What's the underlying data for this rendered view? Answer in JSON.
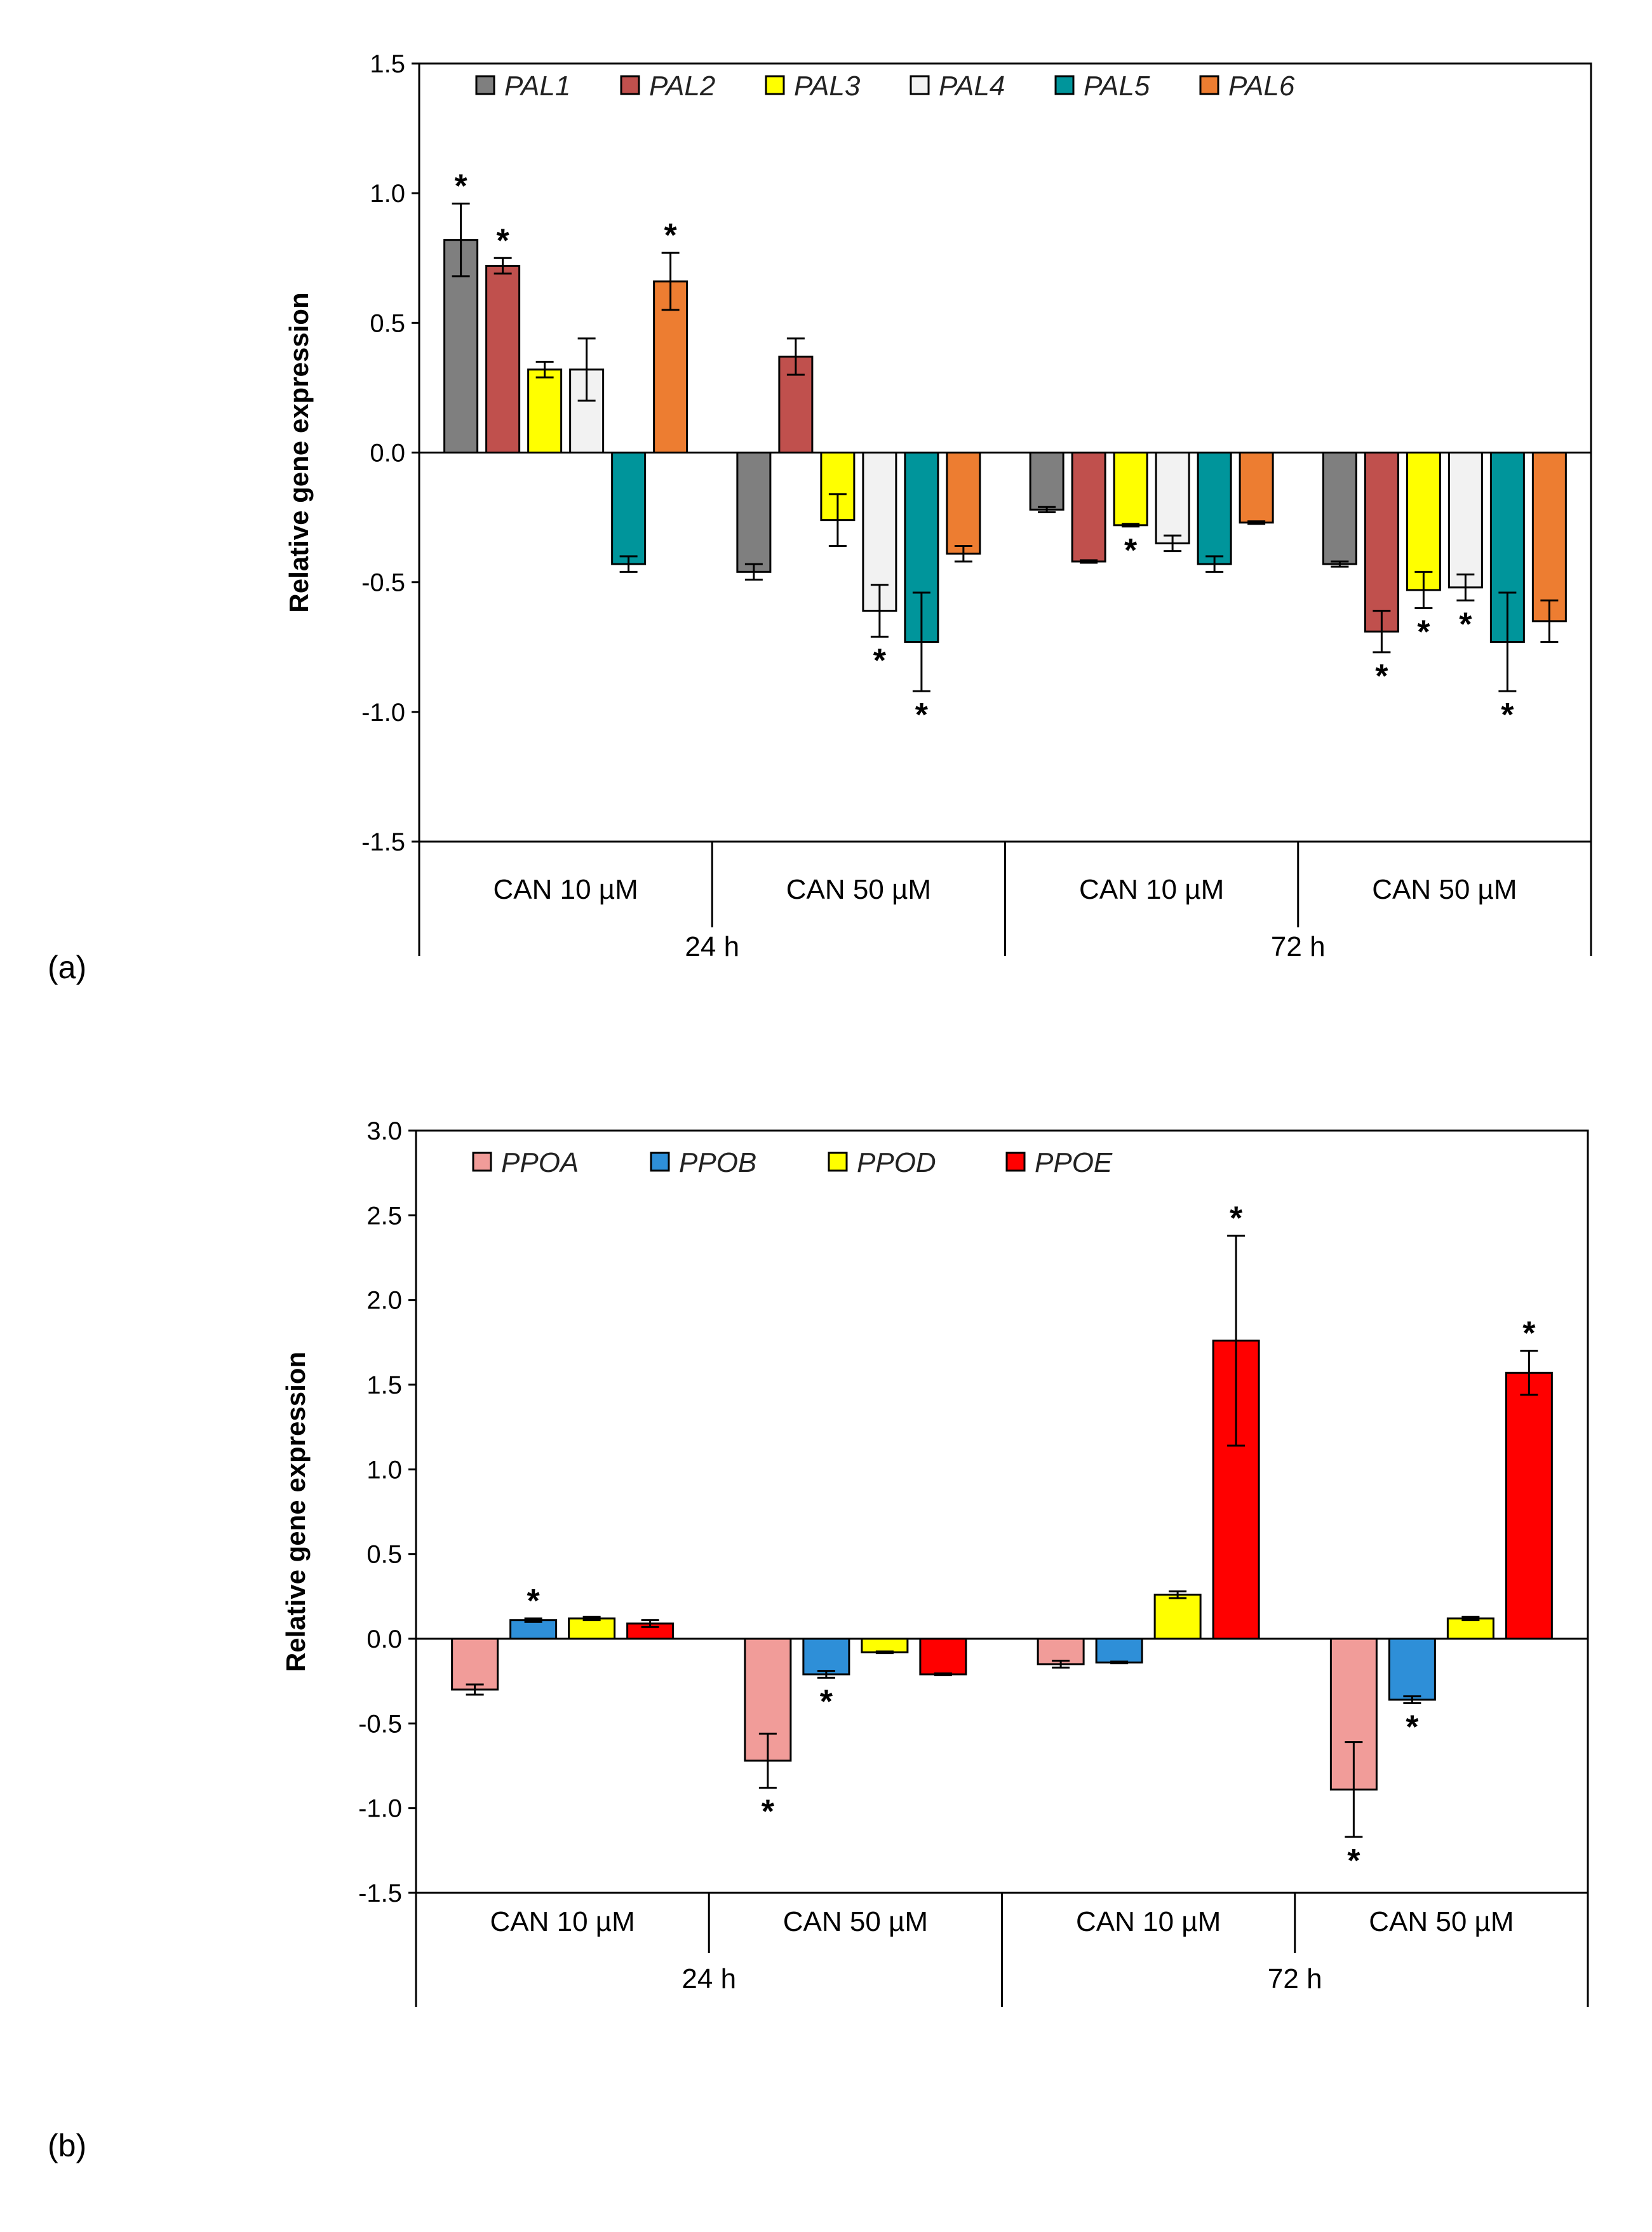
{
  "chart_data": [
    {
      "panel_label": "(a)",
      "type": "bar",
      "title": "",
      "ylabel": "Relative gene expression",
      "xlabel": "",
      "ylim": [
        -1.5,
        1.5
      ],
      "yticks": [
        "1.5",
        "1.0",
        "0.5",
        "0.0",
        "-0.5",
        "-1.0",
        "-1.5"
      ],
      "ytick_values": [
        1.5,
        1.0,
        0.5,
        0.0,
        -0.5,
        -1.0,
        -1.5
      ],
      "categories": [
        "CAN 10 µM",
        "CAN 50 µM",
        "CAN 10 µM",
        "CAN 50 µM"
      ],
      "groups": [
        {
          "label": "24 h",
          "span": 2
        },
        {
          "label": "72 h",
          "span": 2
        }
      ],
      "legend_position": "top-left",
      "series": [
        {
          "name": "PAL1",
          "color": "#7f7f7f",
          "values": [
            0.82,
            -0.46,
            -0.22,
            -0.43
          ],
          "errors": [
            0.14,
            0.03,
            0.01,
            0.01
          ],
          "sig": [
            true,
            false,
            false,
            false
          ]
        },
        {
          "name": "PAL2",
          "color": "#c0504d",
          "values": [
            0.72,
            0.37,
            -0.42,
            -0.69
          ],
          "errors": [
            0.03,
            0.07,
            0.005,
            0.08
          ],
          "sig": [
            true,
            false,
            false,
            true
          ]
        },
        {
          "name": "PAL3",
          "color": "#ffff00",
          "values": [
            0.32,
            -0.26,
            -0.28,
            -0.53
          ],
          "errors": [
            0.03,
            0.1,
            0.005,
            0.07
          ],
          "sig": [
            false,
            false,
            true,
            true
          ]
        },
        {
          "name": "PAL4",
          "color": "#f2f2f2",
          "values": [
            0.32,
            -0.61,
            -0.35,
            -0.52
          ],
          "errors": [
            0.12,
            0.1,
            0.03,
            0.05
          ],
          "sig": [
            false,
            true,
            false,
            true
          ]
        },
        {
          "name": "PAL5",
          "color": "#00959b",
          "values": [
            -0.43,
            -0.73,
            -0.43,
            -0.73
          ],
          "errors": [
            0.03,
            0.19,
            0.03,
            0.19
          ],
          "sig": [
            false,
            true,
            false,
            true
          ]
        },
        {
          "name": "PAL6",
          "color": "#ed7d31",
          "values": [
            0.66,
            -0.39,
            -0.27,
            -0.65
          ],
          "errors": [
            0.11,
            0.03,
            0.005,
            0.08
          ],
          "sig": [
            true,
            false,
            false,
            false
          ]
        }
      ]
    },
    {
      "panel_label": "(b)",
      "type": "bar",
      "title": "",
      "ylabel": "Relative gene expression",
      "xlabel": "",
      "ylim": [
        -1.5,
        3.0
      ],
      "yticks": [
        "3.0",
        "2.5",
        "2.0",
        "1.5",
        "1.0",
        "0.5",
        "0.0",
        "-0.5",
        "-1.0",
        "-1.5"
      ],
      "ytick_values": [
        3.0,
        2.5,
        2.0,
        1.5,
        1.0,
        0.5,
        0.0,
        -0.5,
        -1.0,
        -1.5
      ],
      "categories": [
        "CAN 10 µM",
        "CAN 50 µM",
        "CAN 10 µM",
        "CAN 50 µM"
      ],
      "groups": [
        {
          "label": "24 h",
          "span": 2
        },
        {
          "label": "72 h",
          "span": 2
        }
      ],
      "legend_position": "top-left",
      "series": [
        {
          "name": "PPOA",
          "color": "#f19c99",
          "values": [
            -0.3,
            -0.72,
            -0.15,
            -0.89
          ],
          "errors": [
            0.03,
            0.16,
            0.02,
            0.28
          ],
          "sig": [
            false,
            true,
            false,
            true
          ]
        },
        {
          "name": "PPOB",
          "color": "#2e8fd8",
          "values": [
            0.11,
            -0.21,
            -0.14,
            -0.36
          ],
          "errors": [
            0.01,
            0.02,
            0.005,
            0.02
          ],
          "sig": [
            true,
            true,
            false,
            true
          ]
        },
        {
          "name": "PPOD",
          "color": "#ffff00",
          "values": [
            0.12,
            -0.08,
            0.26,
            0.12
          ],
          "errors": [
            0.01,
            0.005,
            0.02,
            0.01
          ],
          "sig": [
            false,
            false,
            false,
            false
          ]
        },
        {
          "name": "PPOE",
          "color": "#ff0000",
          "values": [
            0.09,
            -0.21,
            1.76,
            1.57
          ],
          "errors": [
            0.02,
            0.005,
            0.62,
            0.13
          ],
          "sig": [
            false,
            false,
            true,
            true
          ]
        }
      ]
    }
  ]
}
